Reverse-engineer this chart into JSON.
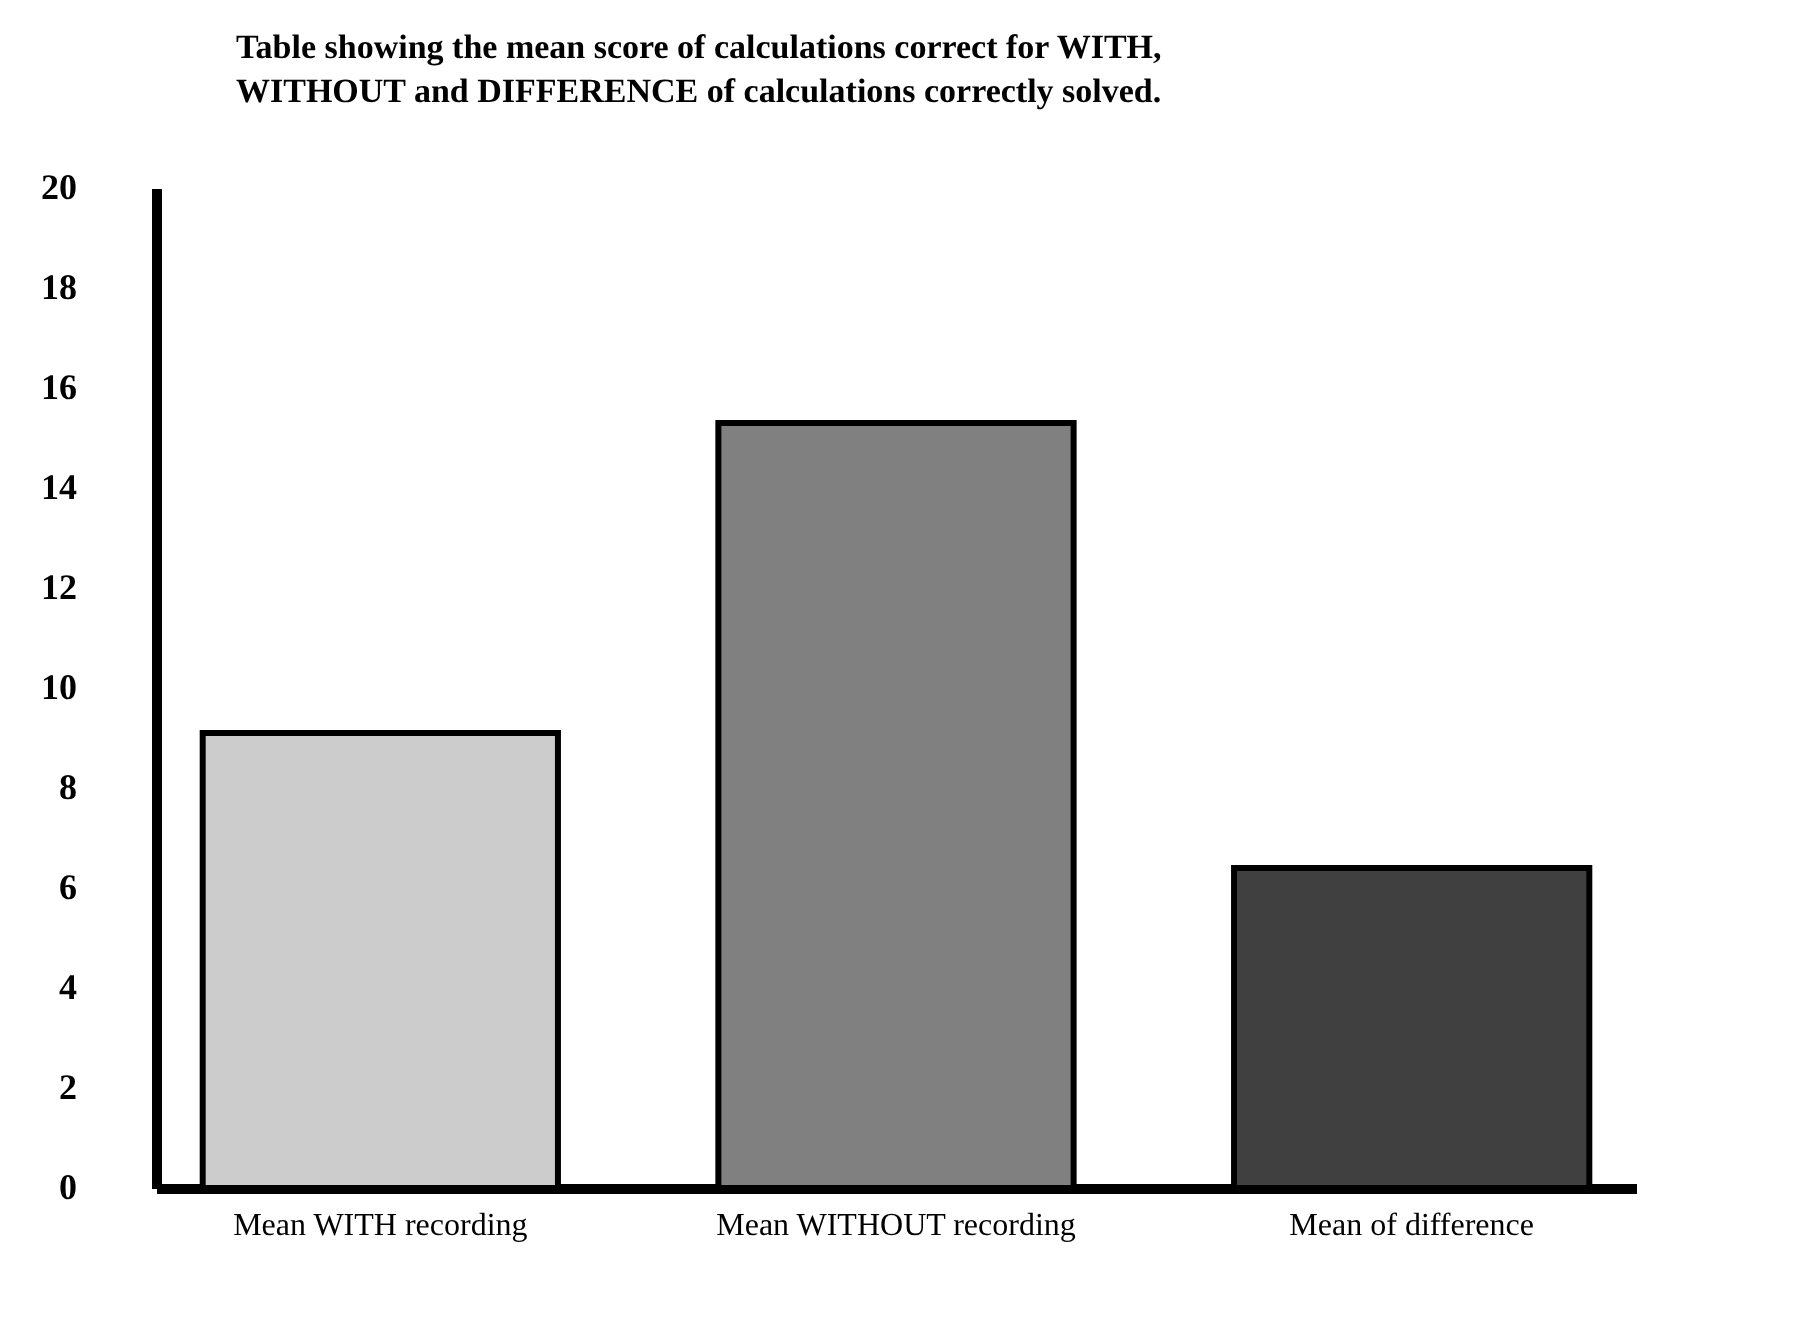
{
  "chart_data": {
    "type": "bar",
    "title": "Table showing the mean score of calculations correct for WITH, WITHOUT and DIFFERENCE of calculations correctly solved.",
    "categories": [
      "Mean WITH recording",
      "Mean WITHOUT recording",
      "Mean of difference"
    ],
    "values": [
      9.1,
      15.3,
      6.4
    ],
    "colors": [
      "#cccccc",
      "#808080",
      "#404040"
    ],
    "ylim": [
      0,
      20
    ],
    "yticks": [
      0,
      2,
      4,
      6,
      8,
      10,
      12,
      14,
      16,
      18,
      20
    ],
    "grid": false,
    "legend": false
  }
}
